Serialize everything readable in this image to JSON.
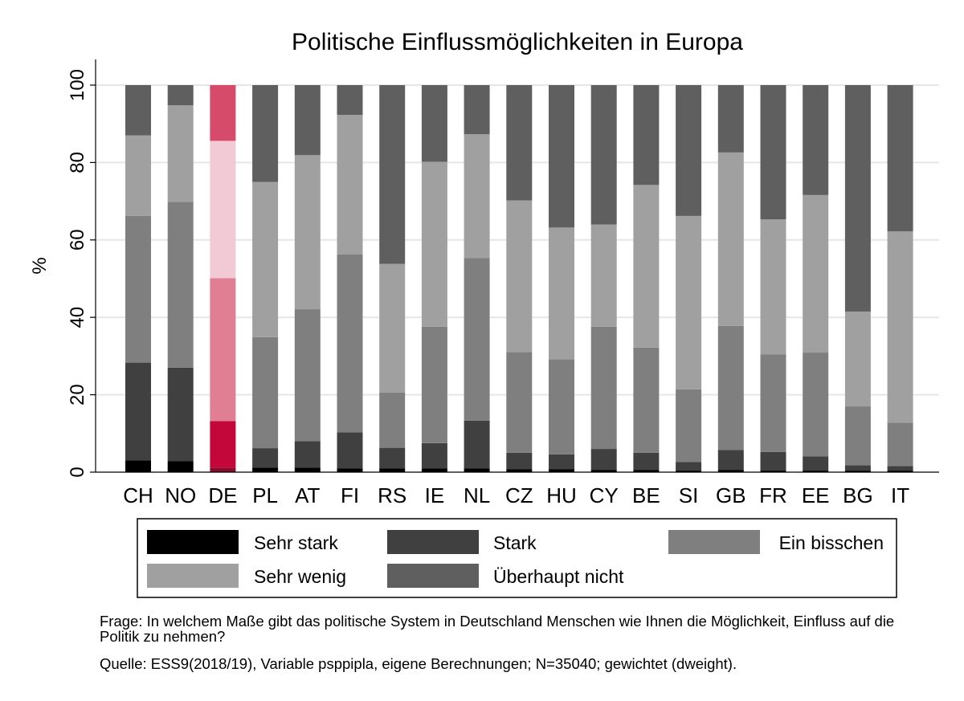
{
  "chart_data": {
    "type": "bar",
    "stacked": true,
    "title": "Politische Einflussmöglichkeiten in Europa",
    "xlabel": "",
    "ylabel": "%",
    "ylim": [
      0,
      100
    ],
    "yticks": [
      0,
      20,
      40,
      60,
      80,
      100
    ],
    "grid": true,
    "highlight_category": "DE",
    "categories": [
      "CH",
      "NO",
      "DE",
      "PL",
      "AT",
      "FI",
      "RS",
      "IE",
      "NL",
      "CZ",
      "HU",
      "CY",
      "BE",
      "SI",
      "GB",
      "FR",
      "EE",
      "BG",
      "IT"
    ],
    "series": [
      {
        "name": "Sehr stark",
        "color": "#000000",
        "highlight_color": "#8c0a2c",
        "values": [
          3,
          2.8,
          1.2,
          1.2,
          1.2,
          1,
          1,
          1,
          1,
          0.8,
          0.8,
          0.6,
          0.6,
          0.4,
          0.6,
          0.4,
          0.4,
          0.4,
          0.4
        ]
      },
      {
        "name": "Stark",
        "color": "#404040",
        "highlight_color": "#c3073a",
        "values": [
          25.3,
          24.2,
          12,
          5,
          6.8,
          9.3,
          5.3,
          6.5,
          12.3,
          4.2,
          3.8,
          5.4,
          4.4,
          2.2,
          5.1,
          4.8,
          3.7,
          1.4,
          1.2
        ]
      },
      {
        "name": "Ein bisschen",
        "color": "#7f7f7f",
        "highlight_color": "#e07e93",
        "values": [
          37.9,
          42.8,
          36.9,
          28.7,
          34.1,
          46,
          14.3,
          30.1,
          42,
          26,
          24.6,
          31.6,
          27.2,
          18.8,
          32.1,
          25.2,
          26.8,
          15.2,
          11.2
        ]
      },
      {
        "name": "Sehr wenig",
        "color": "#a0a0a0",
        "highlight_color": "#f2cad5",
        "values": [
          20.8,
          25,
          35.5,
          40.1,
          39.8,
          36,
          33.2,
          42.6,
          32,
          39.2,
          34,
          26.4,
          42,
          44.8,
          44.8,
          34.9,
          40.7,
          24.5,
          49.4
        ]
      },
      {
        "name": "Überhaupt nicht",
        "color": "#5f5f5f",
        "highlight_color": "#d64a6a",
        "values": [
          13,
          5.2,
          14.4,
          25,
          18.1,
          7.7,
          46.2,
          19.8,
          12.7,
          29.8,
          36.8,
          36,
          25.8,
          33.8,
          17.4,
          34.7,
          28.4,
          58.5,
          37.8
        ]
      }
    ]
  },
  "legend": {
    "items": [
      {
        "label": "Sehr stark",
        "color": "#000000"
      },
      {
        "label": "Stark",
        "color": "#404040"
      },
      {
        "label": "Ein bisschen",
        "color": "#7f7f7f"
      },
      {
        "label": "Sehr wenig",
        "color": "#a0a0a0"
      },
      {
        "label": "Überhaupt nicht",
        "color": "#5f5f5f"
      }
    ]
  },
  "notes": {
    "question": "Frage: In welchem Maße gibt das politische System in Deutschland Menschen wie Ihnen die Möglichkeit, Einfluss auf die Politik zu nehmen?",
    "source": "Quelle: ESS9(2018/19), Variable psppipla, eigene Berechnungen; N=35040; gewichtet (dweight)."
  }
}
